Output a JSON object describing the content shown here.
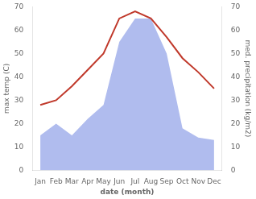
{
  "chart_data": {
    "type": "line",
    "categories": [
      "Jan",
      "Feb",
      "Mar",
      "Apr",
      "May",
      "Jun",
      "Jul",
      "Aug",
      "Sep",
      "Oct",
      "Nov",
      "Dec"
    ],
    "series": [
      {
        "type": "area",
        "color": "#b0bcee",
        "axis": "y2",
        "values": [
          15,
          20,
          15,
          22,
          28,
          55,
          65,
          65,
          50,
          18,
          14,
          13
        ]
      },
      {
        "type": "line",
        "color": "#c0392b",
        "values": [
          28,
          30,
          36,
          43,
          50,
          65,
          68,
          65,
          57,
          48,
          42,
          35
        ]
      }
    ],
    "xlabel": "date (month)",
    "ylabel": "max temp (C)",
    "y2label": "med. precipitation (kg/m2)",
    "ylim": [
      0,
      70
    ],
    "yticks": [
      0,
      10,
      20,
      30,
      40,
      50,
      60,
      70
    ],
    "y2lim": [
      0,
      70
    ],
    "y2ticks": [
      0,
      10,
      20,
      30,
      40,
      50,
      60,
      70
    ],
    "grid": false
  }
}
